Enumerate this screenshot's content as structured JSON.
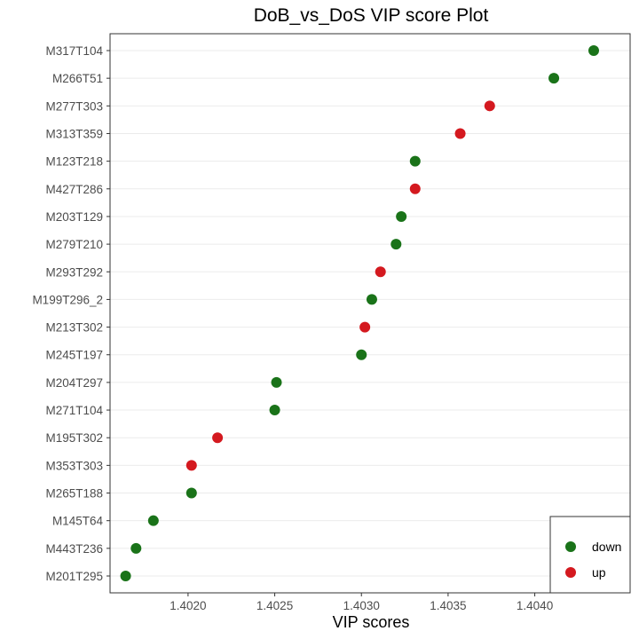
{
  "chart_data": {
    "type": "scatter",
    "title": "DoB_vs_DoS VIP score Plot",
    "xlabel": "VIP scores",
    "ylabel": "",
    "xlim": [
      1.40155,
      1.40455
    ],
    "x_ticks": [
      "1.4020",
      "1.4025",
      "1.4030",
      "1.4035",
      "1.4040"
    ],
    "grid": true,
    "legend_position": "bottom-right",
    "legend": [
      {
        "label": "down",
        "color": "#1a7319"
      },
      {
        "label": "up",
        "color": "#d4191f"
      }
    ],
    "points": [
      {
        "name": "M317T104",
        "value": 1.40434,
        "group": "down"
      },
      {
        "name": "M266T51",
        "value": 1.40411,
        "group": "down"
      },
      {
        "name": "M277T303",
        "value": 1.40374,
        "group": "up"
      },
      {
        "name": "M313T359",
        "value": 1.40357,
        "group": "up"
      },
      {
        "name": "M123T218",
        "value": 1.40331,
        "group": "down"
      },
      {
        "name": "M427T286",
        "value": 1.40331,
        "group": "up"
      },
      {
        "name": "M203T129",
        "value": 1.40323,
        "group": "down"
      },
      {
        "name": "M279T210",
        "value": 1.4032,
        "group": "down"
      },
      {
        "name": "M293T292",
        "value": 1.40311,
        "group": "up"
      },
      {
        "name": "M199T296_2",
        "value": 1.40306,
        "group": "down"
      },
      {
        "name": "M213T302",
        "value": 1.40302,
        "group": "up"
      },
      {
        "name": "M245T197",
        "value": 1.403,
        "group": "down"
      },
      {
        "name": "M204T297",
        "value": 1.40251,
        "group": "down"
      },
      {
        "name": "M271T104",
        "value": 1.4025,
        "group": "down"
      },
      {
        "name": "M195T302",
        "value": 1.40217,
        "group": "up"
      },
      {
        "name": "M353T303",
        "value": 1.40202,
        "group": "up"
      },
      {
        "name": "M265T188",
        "value": 1.40202,
        "group": "down"
      },
      {
        "name": "M145T64",
        "value": 1.4018,
        "group": "down"
      },
      {
        "name": "M443T236",
        "value": 1.4017,
        "group": "down"
      },
      {
        "name": "M201T295",
        "value": 1.40164,
        "group": "down"
      }
    ]
  }
}
